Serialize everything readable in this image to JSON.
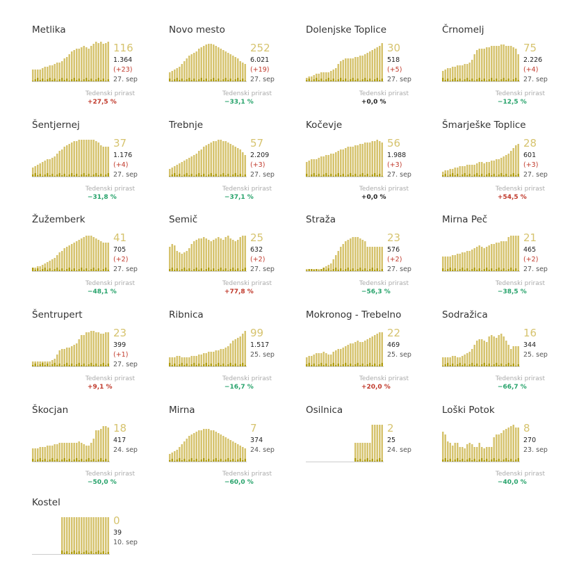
{
  "weekly_label": "Tedenski prirast",
  "colors": {
    "total": "#d6c36e",
    "new": "#b09d10",
    "baseline": "#cccccc",
    "up": "#c0392b",
    "down": "#27a36b",
    "zero": "#222222"
  },
  "chart_data": [
    {
      "type": "bar",
      "title": "Metlika",
      "active": "116",
      "total": "1.364",
      "new": "(+23)",
      "date": "27. sep",
      "weekly": "+27,5 %",
      "trend": "up",
      "values": [
        18,
        18,
        18,
        18,
        20,
        22,
        22,
        24,
        24,
        26,
        28,
        28,
        30,
        34,
        36,
        40,
        44,
        46,
        48,
        48,
        50,
        52,
        50,
        48,
        52,
        55,
        58,
        56,
        58,
        55,
        56,
        58
      ]
    },
    {
      "type": "bar",
      "title": "Novo mesto",
      "active": "252",
      "total": "6.021",
      "new": "(+19)",
      "date": "27. sep",
      "weekly": "−33,1 %",
      "trend": "down",
      "values": [
        14,
        16,
        18,
        20,
        22,
        26,
        30,
        34,
        38,
        40,
        42,
        44,
        48,
        50,
        52,
        54,
        55,
        55,
        54,
        52,
        50,
        48,
        46,
        44,
        42,
        40,
        38,
        36,
        34,
        30,
        28,
        26
      ]
    },
    {
      "type": "bar",
      "title": "Dolenjske Toplice",
      "active": "30",
      "total": "518",
      "new": "(+5)",
      "date": "27. sep",
      "weekly": "+0,0 %",
      "trend": "zero",
      "values": [
        6,
        8,
        8,
        10,
        12,
        12,
        14,
        14,
        14,
        14,
        16,
        18,
        20,
        26,
        30,
        32,
        34,
        34,
        34,
        34,
        36,
        36,
        38,
        38,
        40,
        42,
        44,
        46,
        48,
        50,
        52,
        56
      ]
    },
    {
      "type": "bar",
      "title": "Črnomelj",
      "active": "75",
      "total": "2.226",
      "new": "(+4)",
      "date": "27. sep",
      "weekly": "−12,5 %",
      "trend": "down",
      "values": [
        16,
        18,
        20,
        20,
        22,
        22,
        24,
        24,
        24,
        26,
        26,
        28,
        32,
        40,
        46,
        48,
        48,
        48,
        50,
        50,
        52,
        52,
        52,
        52,
        54,
        54,
        52,
        52,
        52,
        50,
        48,
        40
      ]
    },
    {
      "type": "bar",
      "title": "Šentjernej",
      "active": "37",
      "total": "1.176",
      "new": "(+4)",
      "date": "27. sep",
      "weekly": "−31,8 %",
      "trend": "down",
      "values": [
        14,
        16,
        18,
        20,
        22,
        24,
        26,
        26,
        28,
        30,
        34,
        38,
        40,
        44,
        46,
        48,
        50,
        52,
        52,
        54,
        54,
        54,
        54,
        54,
        54,
        54,
        52,
        50,
        46,
        44,
        44,
        44
      ]
    },
    {
      "type": "bar",
      "title": "Trebnje",
      "active": "57",
      "total": "2.209",
      "new": "(+3)",
      "date": "27. sep",
      "weekly": "−37,1 %",
      "trend": "down",
      "values": [
        12,
        14,
        16,
        18,
        20,
        22,
        24,
        26,
        28,
        30,
        32,
        34,
        38,
        40,
        44,
        46,
        48,
        50,
        52,
        52,
        54,
        54,
        52,
        52,
        50,
        48,
        46,
        44,
        42,
        40,
        36,
        32
      ]
    },
    {
      "type": "bar",
      "title": "Kočevje",
      "active": "56",
      "total": "1.988",
      "new": "(+3)",
      "date": "27. sep",
      "weekly": "+0,0 %",
      "trend": "zero",
      "values": [
        22,
        24,
        26,
        26,
        26,
        28,
        30,
        30,
        32,
        32,
        34,
        34,
        36,
        38,
        40,
        40,
        42,
        44,
        44,
        44,
        46,
        46,
        48,
        48,
        50,
        50,
        50,
        52,
        52,
        54,
        52,
        50
      ]
    },
    {
      "type": "bar",
      "title": "Šmarješke Toplice",
      "active": "28",
      "total": "601",
      "new": "(+3)",
      "date": "27. sep",
      "weekly": "+54,5 %",
      "trend": "up",
      "values": [
        8,
        10,
        10,
        12,
        12,
        14,
        14,
        16,
        16,
        16,
        18,
        18,
        18,
        18,
        20,
        22,
        22,
        20,
        22,
        22,
        24,
        24,
        26,
        26,
        28,
        30,
        32,
        34,
        38,
        42,
        46,
        48
      ]
    },
    {
      "type": "bar",
      "title": "Žužemberk",
      "active": "41",
      "total": "705",
      "new": "(+2)",
      "date": "27. sep",
      "weekly": "−48,1 %",
      "trend": "down",
      "values": [
        6,
        6,
        8,
        8,
        10,
        12,
        14,
        16,
        18,
        20,
        24,
        28,
        30,
        34,
        36,
        38,
        40,
        42,
        44,
        46,
        48,
        50,
        52,
        52,
        52,
        50,
        48,
        46,
        44,
        42,
        42,
        42
      ]
    },
    {
      "type": "bar",
      "title": "Semič",
      "active": "25",
      "total": "632",
      "new": "(+2)",
      "date": "27. sep",
      "weekly": "+77,8 %",
      "trend": "up",
      "values": [
        36,
        40,
        38,
        30,
        28,
        26,
        28,
        30,
        34,
        40,
        44,
        46,
        48,
        48,
        50,
        48,
        46,
        44,
        46,
        48,
        50,
        48,
        46,
        50,
        52,
        48,
        46,
        44,
        46,
        50,
        52,
        52
      ]
    },
    {
      "type": "bar",
      "title": "Straža",
      "active": "23",
      "total": "576",
      "new": "(+2)",
      "date": "27. sep",
      "weekly": "−56,3 %",
      "trend": "down",
      "values": [
        4,
        4,
        4,
        4,
        4,
        4,
        4,
        6,
        8,
        10,
        12,
        18,
        24,
        30,
        36,
        40,
        44,
        46,
        48,
        50,
        50,
        50,
        48,
        46,
        44,
        36,
        36,
        36,
        36,
        36,
        36,
        36
      ]
    },
    {
      "type": "bar",
      "title": "Mirna Peč",
      "active": "21",
      "total": "465",
      "new": "(+2)",
      "date": "27. sep",
      "weekly": "−38,5 %",
      "trend": "down",
      "values": [
        22,
        22,
        22,
        22,
        24,
        24,
        26,
        26,
        28,
        28,
        30,
        30,
        32,
        34,
        36,
        38,
        36,
        34,
        36,
        38,
        40,
        40,
        42,
        42,
        44,
        44,
        44,
        50,
        52,
        52,
        52,
        52
      ]
    },
    {
      "type": "bar",
      "title": "Šentrupert",
      "active": "23",
      "total": "399",
      "new": "(+1)",
      "date": "27. sep",
      "weekly": "+9,1 %",
      "trend": "up",
      "values": [
        8,
        8,
        8,
        8,
        8,
        8,
        8,
        8,
        10,
        12,
        18,
        24,
        26,
        26,
        28,
        28,
        30,
        32,
        34,
        40,
        46,
        46,
        50,
        50,
        52,
        52,
        50,
        50,
        48,
        48,
        50,
        50
      ]
    },
    {
      "type": "bar",
      "title": "Ribnica",
      "active": "99",
      "total": "1.517",
      "new": "",
      "date": "25. sep",
      "weekly": "−16,7 %",
      "trend": "down",
      "values": [
        14,
        14,
        14,
        16,
        16,
        14,
        14,
        14,
        14,
        16,
        16,
        16,
        18,
        18,
        20,
        20,
        22,
        22,
        22,
        24,
        24,
        26,
        26,
        28,
        30,
        34,
        38,
        40,
        42,
        44,
        48,
        52
      ]
    },
    {
      "type": "bar",
      "title": "Mokronog - Trebelno",
      "active": "22",
      "total": "469",
      "new": "",
      "date": "25. sep",
      "weekly": "+20,0 %",
      "trend": "up",
      "values": [
        14,
        16,
        16,
        18,
        20,
        20,
        20,
        22,
        20,
        18,
        18,
        22,
        24,
        26,
        26,
        28,
        30,
        32,
        34,
        34,
        36,
        38,
        36,
        36,
        38,
        40,
        42,
        44,
        46,
        48,
        50,
        50
      ]
    },
    {
      "type": "bar",
      "title": "Sodražica",
      "active": "16",
      "total": "344",
      "new": "",
      "date": "25. sep",
      "weekly": "−66,7 %",
      "trend": "down",
      "values": [
        14,
        14,
        14,
        14,
        16,
        16,
        14,
        14,
        16,
        18,
        20,
        22,
        26,
        32,
        38,
        40,
        40,
        38,
        36,
        44,
        46,
        44,
        42,
        46,
        48,
        44,
        38,
        32,
        26,
        30,
        30,
        30
      ]
    },
    {
      "type": "bar",
      "title": "Škocjan",
      "active": "18",
      "total": "417",
      "new": "",
      "date": "24. sep",
      "weekly": "−50,0 %",
      "trend": "down",
      "values": [
        20,
        20,
        20,
        22,
        22,
        22,
        24,
        24,
        24,
        26,
        26,
        28,
        28,
        28,
        28,
        28,
        28,
        28,
        28,
        30,
        28,
        26,
        24,
        24,
        28,
        34,
        46,
        46,
        48,
        52,
        52,
        50
      ]
    },
    {
      "type": "bar",
      "title": "Mirna",
      "active": "7",
      "total": "374",
      "new": "",
      "date": "24. sep",
      "weekly": "−60,0 %",
      "trend": "down",
      "values": [
        12,
        14,
        16,
        18,
        22,
        26,
        30,
        34,
        38,
        40,
        42,
        44,
        46,
        46,
        48,
        48,
        48,
        46,
        46,
        44,
        42,
        40,
        38,
        36,
        34,
        32,
        30,
        28,
        26,
        24,
        22,
        20
      ]
    },
    {
      "type": "bar",
      "title": "Osilnica",
      "active": "2",
      "total": "25",
      "new": "",
      "date": "24. sep",
      "weekly": "",
      "trend": "zero",
      "values": [
        0,
        0,
        0,
        0,
        0,
        0,
        0,
        0,
        0,
        0,
        0,
        0,
        0,
        0,
        0,
        0,
        0,
        0,
        0,
        0,
        28,
        28,
        28,
        28,
        28,
        28,
        28,
        54,
        54,
        54,
        54,
        54
      ]
    },
    {
      "type": "bar",
      "title": "Loški Potok",
      "active": "8",
      "total": "270",
      "new": "",
      "date": "23. sep",
      "weekly": "−40,0 %",
      "trend": "down",
      "values": [
        44,
        40,
        30,
        28,
        24,
        28,
        28,
        22,
        22,
        20,
        26,
        28,
        26,
        22,
        22,
        28,
        22,
        20,
        22,
        22,
        22,
        36,
        40,
        40,
        42,
        46,
        48,
        50,
        52,
        54,
        50,
        50
      ]
    },
    {
      "type": "bar",
      "title": "Kostel",
      "active": "0",
      "total": "39",
      "new": "",
      "date": "10. sep",
      "weekly": "",
      "trend": "zero",
      "values": [
        0,
        0,
        0,
        0,
        0,
        0,
        0,
        0,
        0,
        0,
        0,
        0,
        54,
        54,
        54,
        54,
        54,
        54,
        54,
        54,
        54,
        54,
        54,
        54,
        54,
        54,
        54,
        54,
        54,
        54,
        54,
        54
      ]
    }
  ]
}
